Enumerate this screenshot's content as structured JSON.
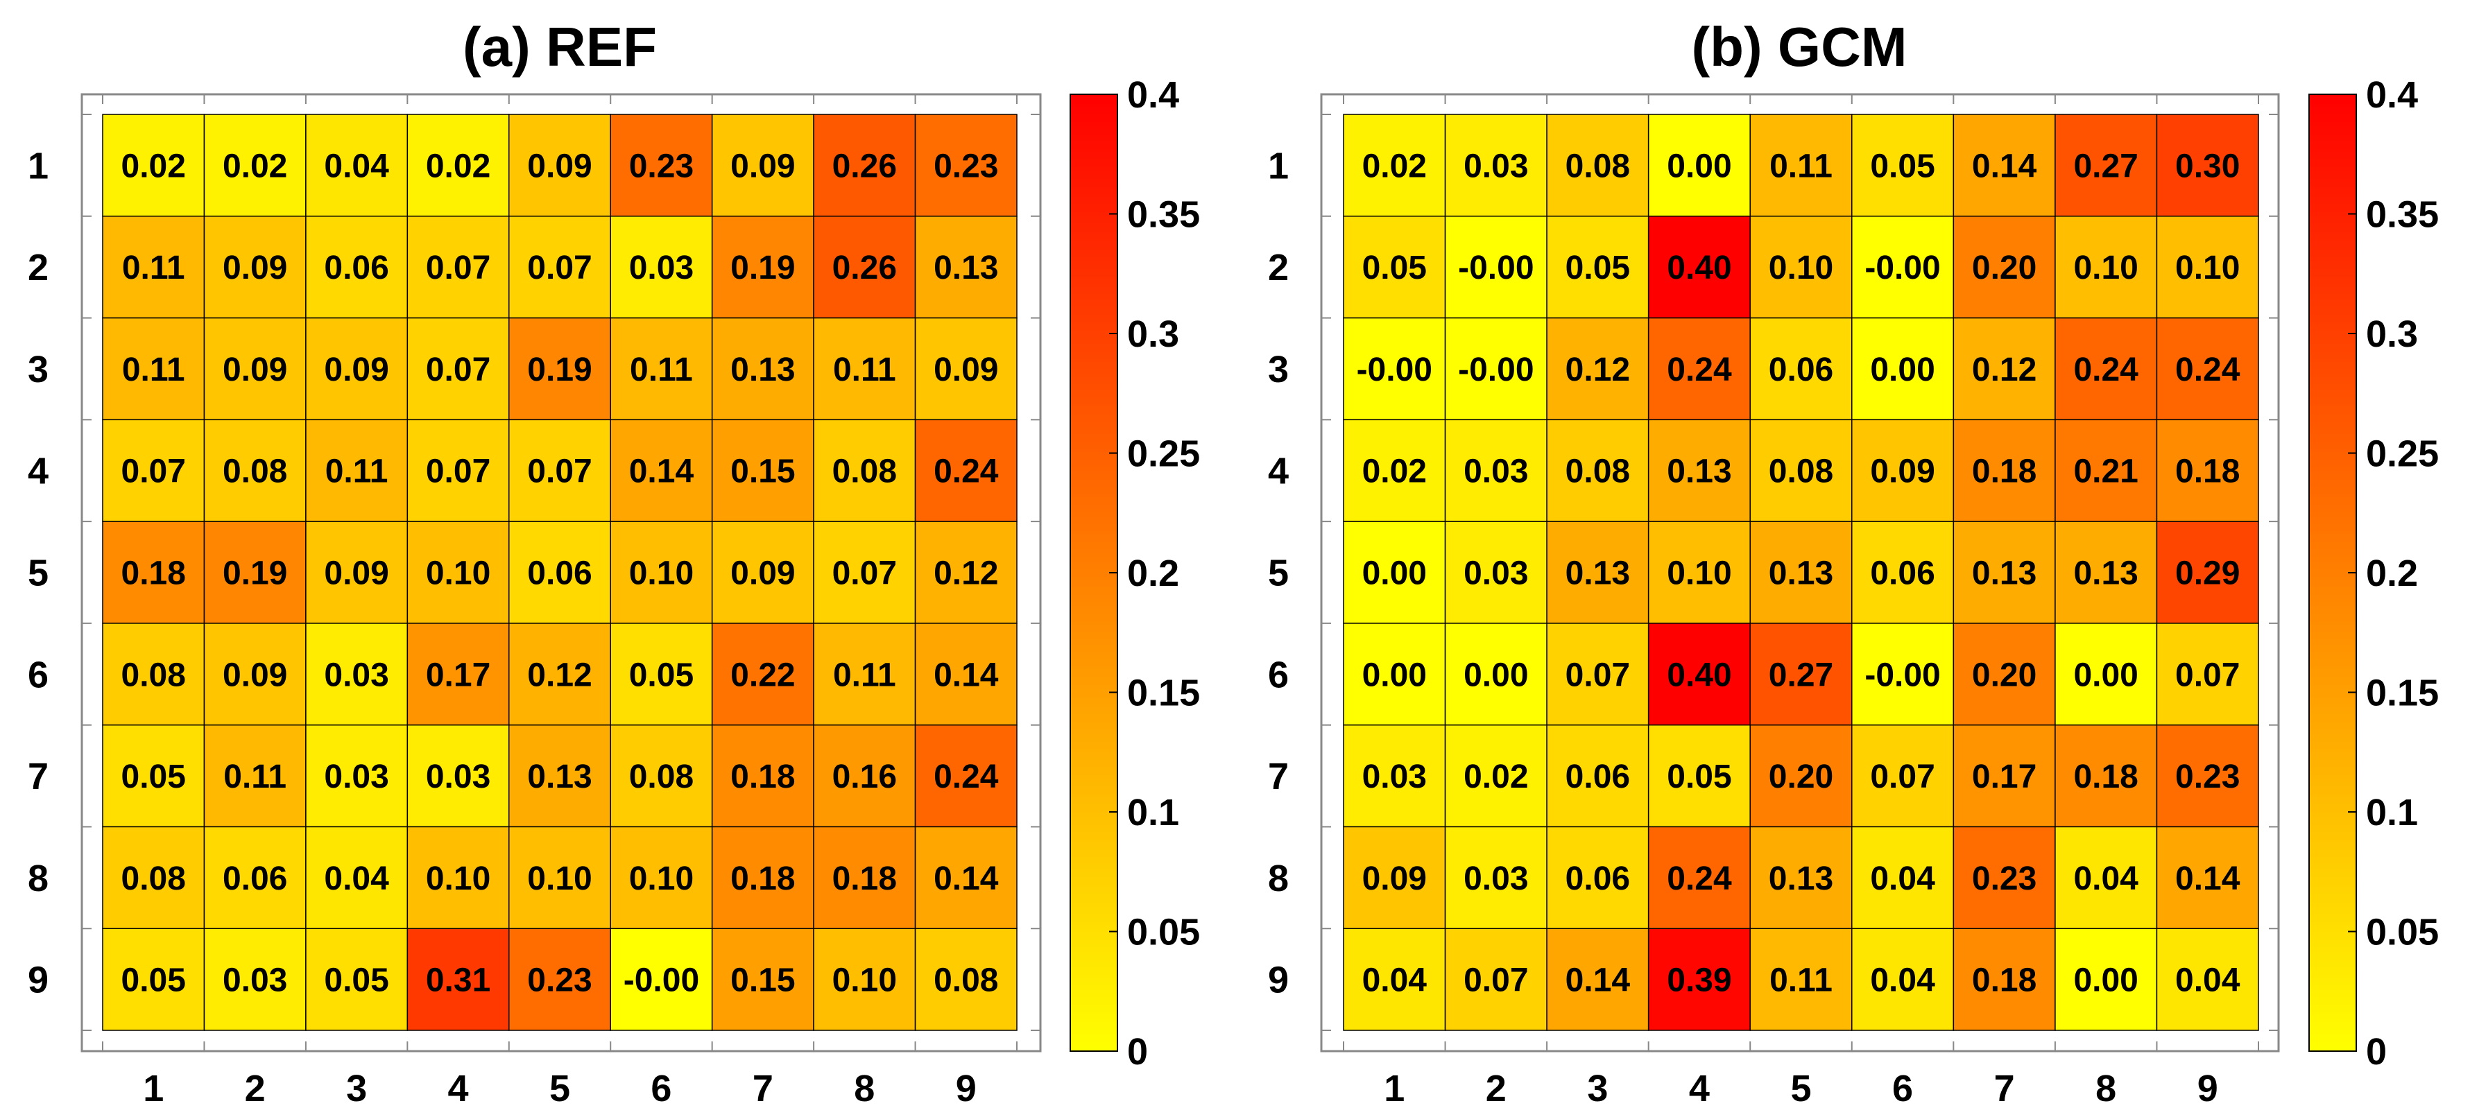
{
  "chart_data": [
    {
      "type": "heatmap",
      "title": "(a) REF",
      "x_categories": [
        "1",
        "2",
        "3",
        "4",
        "5",
        "6",
        "7",
        "8",
        "9"
      ],
      "y_categories": [
        "1",
        "2",
        "3",
        "4",
        "5",
        "6",
        "7",
        "8",
        "9"
      ],
      "values": [
        [
          "0.02",
          "0.02",
          "0.04",
          "0.02",
          "0.09",
          "0.23",
          "0.09",
          "0.26",
          "0.23"
        ],
        [
          "0.11",
          "0.09",
          "0.06",
          "0.07",
          "0.07",
          "0.03",
          "0.19",
          "0.26",
          "0.13"
        ],
        [
          "0.11",
          "0.09",
          "0.09",
          "0.07",
          "0.19",
          "0.11",
          "0.13",
          "0.11",
          "0.09"
        ],
        [
          "0.07",
          "0.08",
          "0.11",
          "0.07",
          "0.07",
          "0.14",
          "0.15",
          "0.08",
          "0.24"
        ],
        [
          "0.18",
          "0.19",
          "0.09",
          "0.10",
          "0.06",
          "0.10",
          "0.09",
          "0.07",
          "0.12"
        ],
        [
          "0.08",
          "0.09",
          "0.03",
          "0.17",
          "0.12",
          "0.05",
          "0.22",
          "0.11",
          "0.14"
        ],
        [
          "0.05",
          "0.11",
          "0.03",
          "0.03",
          "0.13",
          "0.08",
          "0.18",
          "0.16",
          "0.24"
        ],
        [
          "0.08",
          "0.06",
          "0.04",
          "0.10",
          "0.10",
          "0.10",
          "0.18",
          "0.18",
          "0.14"
        ],
        [
          "0.05",
          "0.03",
          "0.05",
          "0.31",
          "0.23",
          "-0.00",
          "0.15",
          "0.10",
          "0.08"
        ]
      ],
      "colorbar": {
        "range": [
          0,
          0.4
        ],
        "ticks": [
          "0",
          "0.05",
          "0.1",
          "0.15",
          "0.2",
          "0.25",
          "0.3",
          "0.35",
          "0.4"
        ],
        "colors": [
          "#ffff00",
          "#ff0000"
        ]
      }
    },
    {
      "type": "heatmap",
      "title": "(b) GCM",
      "x_categories": [
        "1",
        "2",
        "3",
        "4",
        "5",
        "6",
        "7",
        "8",
        "9"
      ],
      "y_categories": [
        "1",
        "2",
        "3",
        "4",
        "5",
        "6",
        "7",
        "8",
        "9"
      ],
      "values": [
        [
          "0.02",
          "0.03",
          "0.08",
          "0.00",
          "0.11",
          "0.05",
          "0.14",
          "0.27",
          "0.30"
        ],
        [
          "0.05",
          "-0.00",
          "0.05",
          "0.40",
          "0.10",
          "-0.00",
          "0.20",
          "0.10",
          "0.10"
        ],
        [
          "-0.00",
          "-0.00",
          "0.12",
          "0.24",
          "0.06",
          "0.00",
          "0.12",
          "0.24",
          "0.24"
        ],
        [
          "0.02",
          "0.03",
          "0.08",
          "0.13",
          "0.08",
          "0.09",
          "0.18",
          "0.21",
          "0.18"
        ],
        [
          "0.00",
          "0.03",
          "0.13",
          "0.10",
          "0.13",
          "0.06",
          "0.13",
          "0.13",
          "0.29"
        ],
        [
          "0.00",
          "0.00",
          "0.07",
          "0.40",
          "0.27",
          "-0.00",
          "0.20",
          "0.00",
          "0.07"
        ],
        [
          "0.03",
          "0.02",
          "0.06",
          "0.05",
          "0.20",
          "0.07",
          "0.17",
          "0.18",
          "0.23"
        ],
        [
          "0.09",
          "0.03",
          "0.06",
          "0.24",
          "0.13",
          "0.04",
          "0.23",
          "0.04",
          "0.14"
        ],
        [
          "0.04",
          "0.07",
          "0.14",
          "0.39",
          "0.11",
          "0.04",
          "0.18",
          "0.00",
          "0.04"
        ]
      ],
      "colorbar": {
        "range": [
          0,
          0.4
        ],
        "ticks": [
          "0",
          "0.05",
          "0.1",
          "0.15",
          "0.2",
          "0.25",
          "0.3",
          "0.35",
          "0.4"
        ],
        "colors": [
          "#ffff00",
          "#ff0000"
        ]
      }
    }
  ]
}
